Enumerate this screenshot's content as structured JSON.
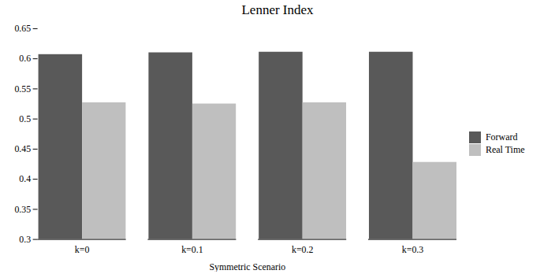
{
  "chart_data": {
    "type": "bar",
    "title": "Lenner Index",
    "xlabel": "Symmetric Scenario",
    "categories": [
      "k=0",
      "k=0.1",
      "k=0.2",
      "k=0.3"
    ],
    "series": [
      {
        "name": "Forward",
        "color": "#595959",
        "values": [
          0.607,
          0.61,
          0.611,
          0.611
        ]
      },
      {
        "name": "Real Time",
        "color": "#BFBFBF",
        "values": [
          0.527,
          0.525,
          0.527,
          0.428
        ]
      }
    ],
    "ylim": [
      0.3,
      0.65
    ],
    "yticks": [
      0.3,
      0.35,
      0.4,
      0.45,
      0.5,
      0.55,
      0.6,
      0.65
    ],
    "grid": false,
    "legend": "right"
  }
}
